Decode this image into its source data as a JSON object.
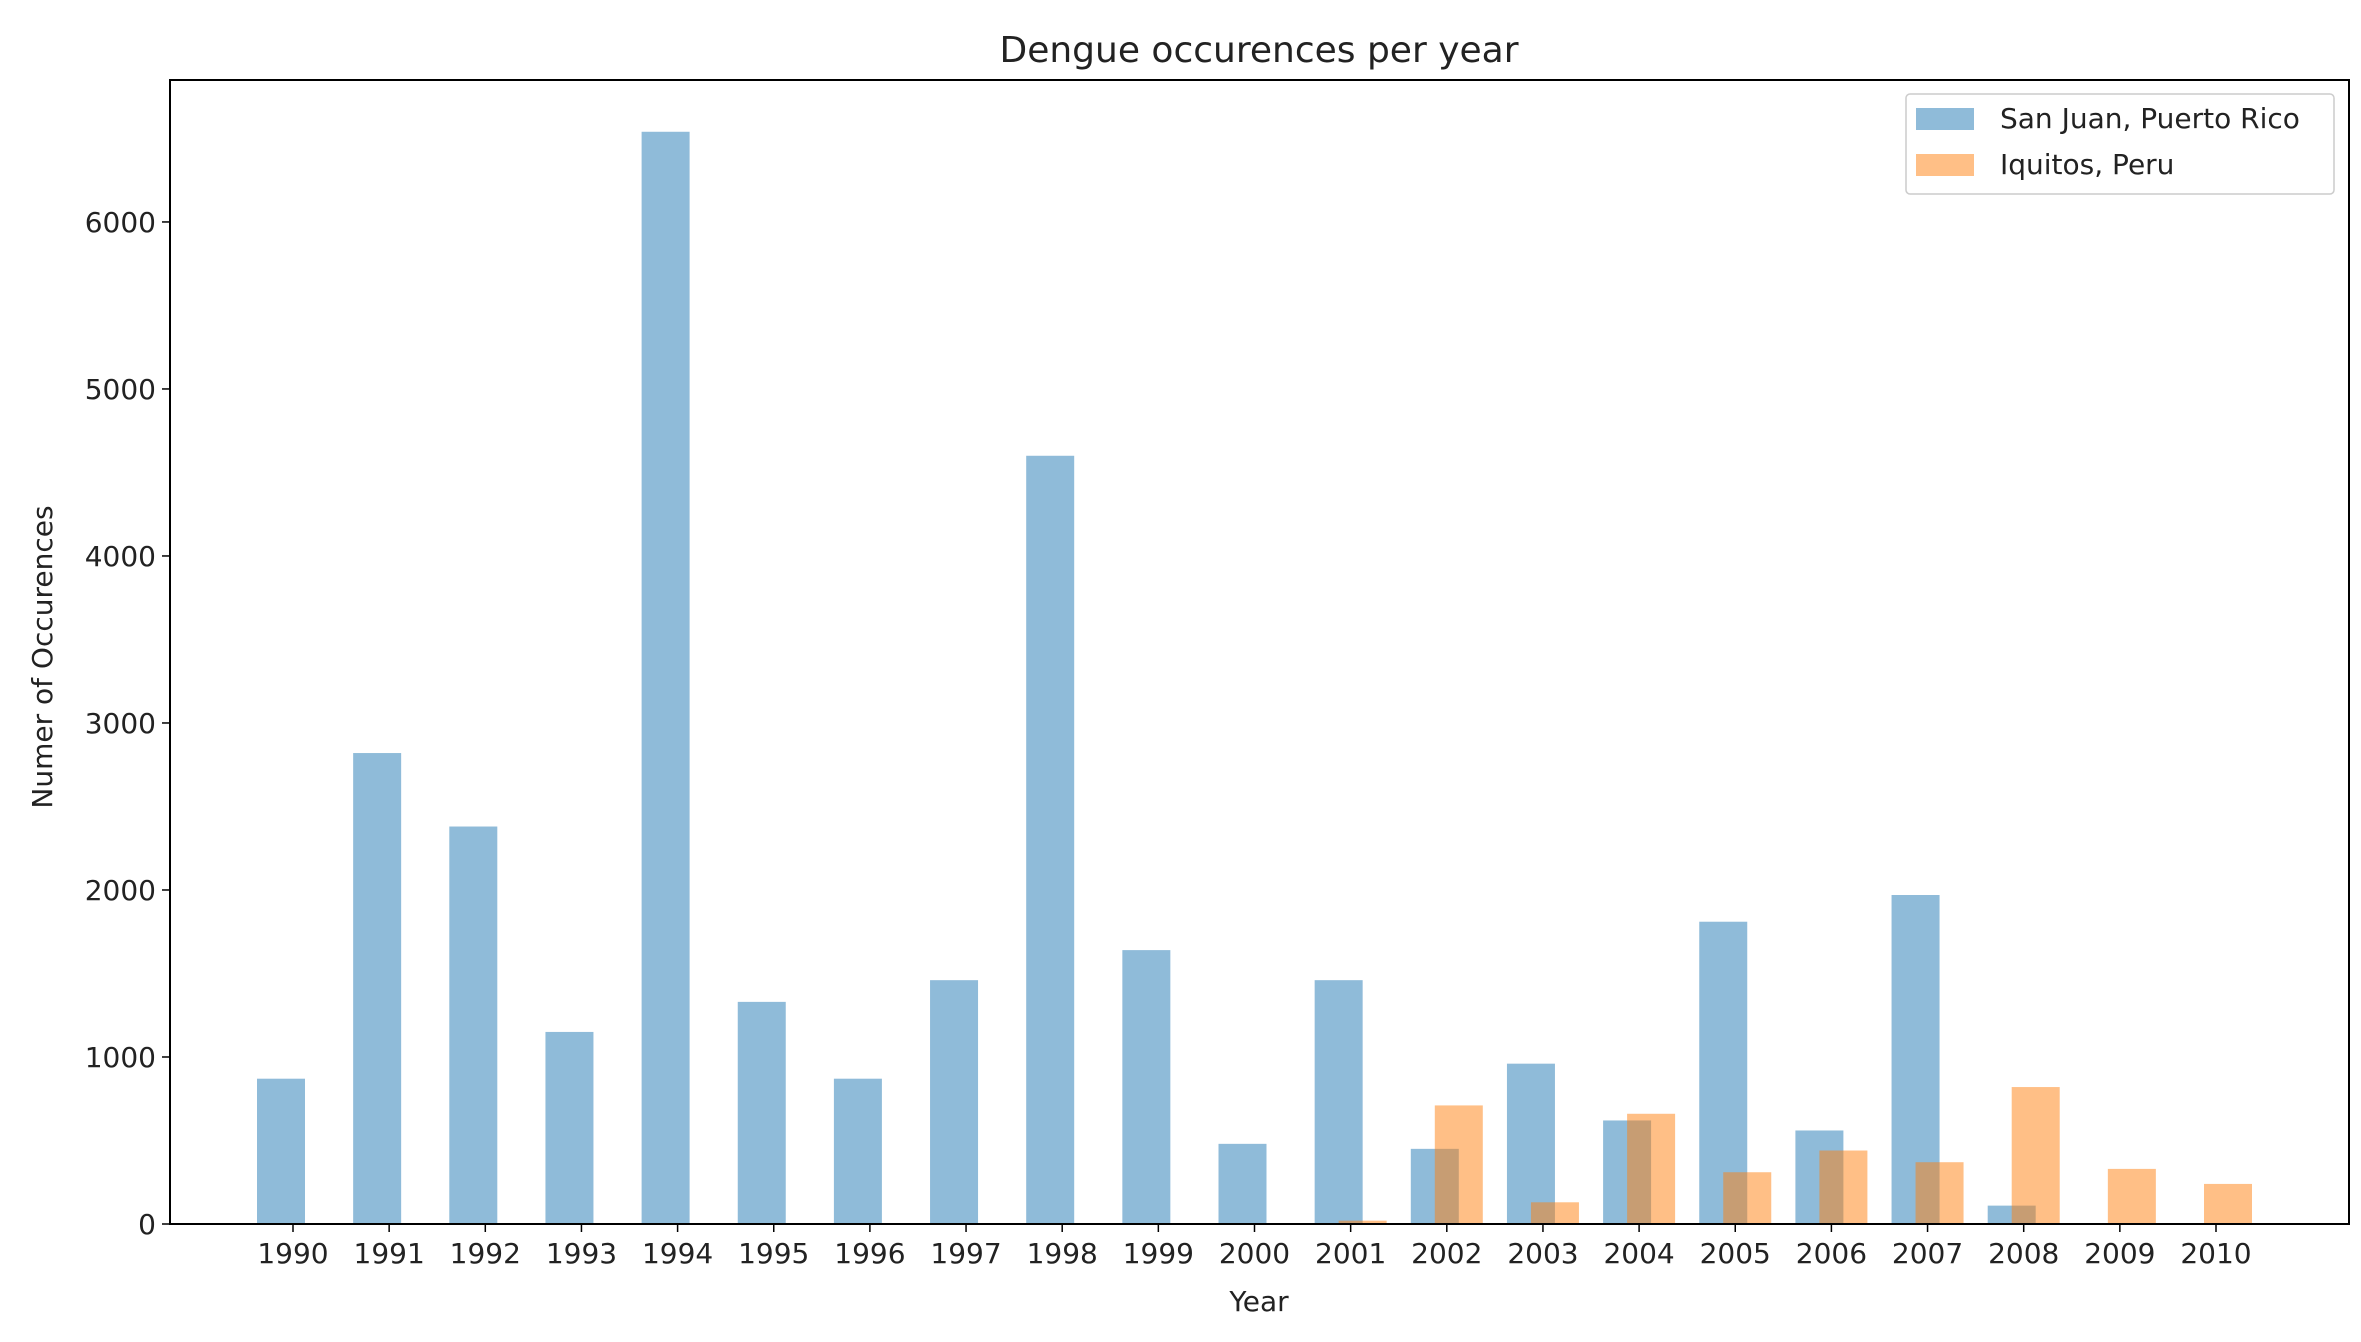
{
  "chart_data": {
    "type": "bar",
    "title": "Dengue occurences per year",
    "xlabel": "Year",
    "ylabel": "Numer of Occurences",
    "ylim": [
      0,
      6850
    ],
    "yticks": [
      0,
      1000,
      2000,
      3000,
      4000,
      5000,
      6000
    ],
    "categories": [
      "1990",
      "1991",
      "1992",
      "1993",
      "1994",
      "1995",
      "1996",
      "1997",
      "1998",
      "1999",
      "2000",
      "2001",
      "2002",
      "2003",
      "2004",
      "2005",
      "2006",
      "2007",
      "2008",
      "2009",
      "2010"
    ],
    "grid": false,
    "legend_position": "top-right",
    "series": [
      {
        "name": "San Juan, Puerto Rico",
        "color": "#1f77b4",
        "alpha": 0.5,
        "values": [
          870,
          2820,
          2380,
          1150,
          6540,
          1330,
          870,
          1460,
          4600,
          1640,
          480,
          1460,
          450,
          960,
          620,
          1810,
          560,
          1970,
          110,
          null,
          null
        ]
      },
      {
        "name": "Iquitos, Peru",
        "color": "#ff7f0e",
        "alpha": 0.5,
        "values": [
          null,
          null,
          null,
          null,
          null,
          null,
          null,
          null,
          null,
          null,
          null,
          20,
          710,
          130,
          660,
          310,
          440,
          370,
          820,
          330,
          240
        ]
      }
    ]
  }
}
